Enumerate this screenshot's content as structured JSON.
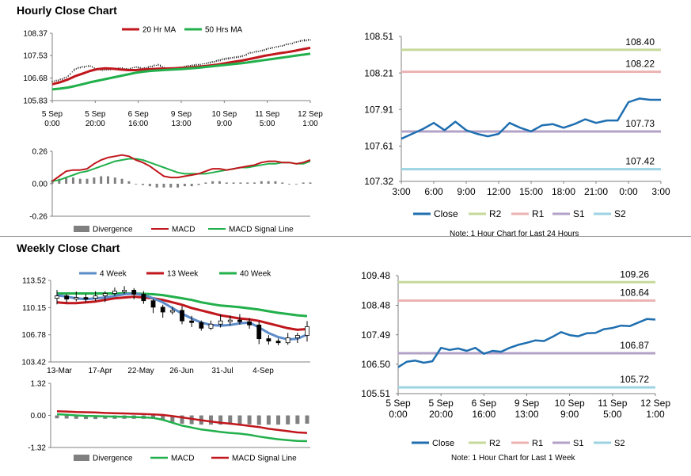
{
  "sections": {
    "hourly_title": "Hourly Close Chart",
    "weekly_title": "Weekly Close Chart"
  },
  "colors": {
    "ma20": "#c0171d",
    "ma50": "#21b04b",
    "close": "#1f6fb0",
    "r2": "#c6d99a",
    "r1": "#ecb3b3",
    "s1": "#b3a2c7",
    "s2": "#9dd3e3",
    "week4": "#5b8bc9",
    "divergence": "#808080"
  },
  "chart_data": [
    {
      "id": "hourly_price",
      "type": "line",
      "title": "",
      "legend": [
        "20 Hr MA",
        "50 Hrs MA"
      ],
      "ylim": [
        105.83,
        108.37
      ],
      "yticks": [
        "108.37",
        "107.53",
        "106.68",
        "105.83"
      ],
      "xticks": [
        "5 Sep\n0:00",
        "5 Sep\n20:00",
        "6 Sep\n16:00",
        "9 Sep\n13:00",
        "10 Sep\n9:00",
        "11 Sep\n5:00",
        "12 Sep\n1:00"
      ],
      "n_bars": 130,
      "series": [
        {
          "name": "Price",
          "values": [
            106.55,
            106.62,
            106.72,
            107.02,
            107.1,
            107.14,
            107.0,
            106.98,
            107.02,
            107.06,
            107.0,
            107.1,
            107.05,
            107.12,
            107.18,
            107.05,
            107.02,
            107.08,
            107.15,
            107.18,
            107.22,
            107.28,
            107.35,
            107.42,
            107.45,
            107.5,
            107.62,
            107.68,
            107.75,
            107.82,
            107.88,
            107.95,
            108.02,
            108.1,
            108.12
          ]
        },
        {
          "name": "20 Hr MA",
          "values": [
            106.45,
            106.52,
            106.62,
            106.75,
            106.85,
            106.95,
            107.02,
            107.05,
            107.03,
            107.0,
            106.98,
            106.98,
            107.0,
            107.02,
            107.03,
            107.04,
            107.05,
            107.06,
            107.08,
            107.1,
            107.13,
            107.16,
            107.2,
            107.25,
            107.3,
            107.34,
            107.4,
            107.46,
            107.52,
            107.57,
            107.62,
            107.66,
            107.71,
            107.77,
            107.82
          ]
        },
        {
          "name": "50 Hrs MA",
          "values": [
            106.25,
            106.28,
            106.32,
            106.38,
            106.45,
            106.52,
            106.58,
            106.64,
            106.7,
            106.76,
            106.82,
            106.88,
            106.92,
            106.95,
            106.97,
            106.99,
            107.0,
            107.02,
            107.04,
            107.06,
            107.09,
            107.12,
            107.15,
            107.18,
            107.21,
            107.24,
            107.28,
            107.32,
            107.36,
            107.4,
            107.44,
            107.48,
            107.52,
            107.56,
            107.6
          ]
        }
      ]
    },
    {
      "id": "hourly_macd",
      "type": "line",
      "ylim": [
        -0.26,
        0.26
      ],
      "yticks": [
        "0.26",
        "0.00",
        "-0.26"
      ],
      "legend": [
        "Divergence",
        "MACD",
        "MACD Signal Line"
      ],
      "series": [
        {
          "name": "MACD",
          "values": [
            0.02,
            0.06,
            0.1,
            0.11,
            0.11,
            0.12,
            0.16,
            0.19,
            0.21,
            0.22,
            0.23,
            0.22,
            0.19,
            0.17,
            0.14,
            0.1,
            0.06,
            0.05,
            0.05,
            0.06,
            0.07,
            0.08,
            0.1,
            0.12,
            0.12,
            0.11,
            0.12,
            0.13,
            0.14,
            0.15,
            0.17,
            0.18,
            0.18,
            0.17,
            0.17,
            0.16,
            0.17,
            0.19
          ]
        },
        {
          "name": "MACD Signal Line",
          "values": [
            0.02,
            0.03,
            0.05,
            0.07,
            0.09,
            0.1,
            0.12,
            0.14,
            0.16,
            0.18,
            0.19,
            0.2,
            0.2,
            0.19,
            0.17,
            0.15,
            0.13,
            0.11,
            0.09,
            0.08,
            0.08,
            0.08,
            0.08,
            0.09,
            0.1,
            0.11,
            0.12,
            0.13,
            0.13,
            0.14,
            0.15,
            0.16,
            0.16,
            0.17,
            0.17,
            0.16,
            0.16,
            0.18
          ]
        },
        {
          "name": "Divergence",
          "values": [
            0.03,
            0.04,
            0.05,
            0.05,
            0.04,
            0.04,
            0.05,
            0.06,
            0.06,
            0.05,
            0.04,
            0.02,
            0.0,
            -0.01,
            -0.02,
            -0.03,
            -0.03,
            -0.03,
            -0.03,
            -0.02,
            -0.02,
            -0.01,
            0.01,
            0.02,
            0.02,
            0.01,
            0.01,
            0.01,
            0.01,
            0.01,
            0.02,
            0.02,
            0.02,
            0.01,
            0.0,
            0.0,
            0.01,
            0.01
          ]
        }
      ]
    },
    {
      "id": "hourly_levels",
      "type": "line",
      "ylim": [
        107.32,
        108.51
      ],
      "yticks": [
        "108.51",
        "108.21",
        "107.91",
        "107.61",
        "107.32"
      ],
      "xticks": [
        "3:00",
        "6:00",
        "9:00",
        "12:00",
        "15:00",
        "18:00",
        "21:00",
        "0:00",
        "3:00"
      ],
      "levels": {
        "R2": "108.40",
        "R1": "108.22",
        "S1": "107.73",
        "S2": "107.42"
      },
      "legend": [
        "Close",
        "R2",
        "R1",
        "S1",
        "S2"
      ],
      "note": "Note: 1 Hour Chart for Last 24 Hours",
      "series": [
        {
          "name": "Close",
          "values": [
            107.67,
            107.71,
            107.75,
            107.8,
            107.74,
            107.81,
            107.74,
            107.71,
            107.69,
            107.71,
            107.8,
            107.76,
            107.73,
            107.78,
            107.79,
            107.76,
            107.79,
            107.83,
            107.8,
            107.82,
            107.82,
            107.97,
            108.0,
            107.99,
            107.99
          ]
        }
      ]
    },
    {
      "id": "weekly_price",
      "type": "line",
      "legend": [
        "4 Week",
        "13 Week",
        "40 Week"
      ],
      "ylim": [
        103.42,
        113.52
      ],
      "yticks": [
        "113.52",
        "110.15",
        "106.78",
        "103.42"
      ],
      "xticks": [
        "13-Mar",
        "17-Apr",
        "22-May",
        "26-Jun",
        "31-Jul",
        "4-Sep"
      ],
      "series": [
        {
          "name": "Price",
          "values": [
            111.6,
            111.2,
            111.4,
            111.3,
            111.6,
            111.9,
            112.2,
            112.3,
            111.8,
            111.0,
            110.2,
            109.6,
            109.8,
            108.5,
            108.3,
            107.6,
            108.1,
            108.5,
            108.6,
            108.4,
            108.0,
            106.3,
            106.0,
            105.8,
            106.4,
            106.7,
            107.8
          ]
        },
        {
          "name": "4 Week",
          "values": [
            111.7,
            111.5,
            111.3,
            111.2,
            111.3,
            111.4,
            111.6,
            111.8,
            111.9,
            111.7,
            111.3,
            110.8,
            110.1,
            109.4,
            108.8,
            108.3,
            108.0,
            107.9,
            108.0,
            108.2,
            108.3,
            107.7,
            107.0,
            106.5,
            106.2,
            106.3,
            106.8
          ]
        },
        {
          "name": "13 Week",
          "values": [
            110.8,
            110.7,
            110.7,
            110.8,
            110.9,
            111.1,
            111.3,
            111.4,
            111.5,
            111.4,
            111.3,
            111.1,
            110.8,
            110.5,
            110.1,
            109.8,
            109.5,
            109.2,
            109.0,
            108.8,
            108.7,
            108.5,
            108.2,
            107.9,
            107.6,
            107.4,
            107.5
          ]
        },
        {
          "name": "40 Week",
          "values": [
            111.9,
            111.9,
            111.9,
            111.9,
            111.9,
            111.9,
            111.9,
            111.9,
            111.9,
            111.85,
            111.8,
            111.7,
            111.5,
            111.3,
            111.1,
            110.8,
            110.6,
            110.4,
            110.3,
            110.2,
            110.05,
            109.9,
            109.7,
            109.5,
            109.35,
            109.2,
            109.1
          ]
        }
      ]
    },
    {
      "id": "weekly_macd",
      "type": "line",
      "ylim": [
        -1.32,
        1.32
      ],
      "yticks": [
        "1.32",
        "0.00",
        "-1.32"
      ],
      "legend": [
        "Divergence",
        "MACD",
        "MACD Signal Line"
      ],
      "series": [
        {
          "name": "MACD",
          "values": [
            0.05,
            0.03,
            0.0,
            -0.02,
            -0.03,
            -0.04,
            -0.05,
            -0.06,
            -0.07,
            -0.08,
            -0.1,
            -0.18,
            -0.3,
            -0.42,
            -0.5,
            -0.58,
            -0.63,
            -0.68,
            -0.72,
            -0.75,
            -0.8,
            -0.87,
            -0.93,
            -0.98,
            -1.02,
            -1.05,
            -1.06
          ]
        },
        {
          "name": "MACD Signal Line",
          "values": [
            0.17,
            0.16,
            0.14,
            0.13,
            0.12,
            0.1,
            0.09,
            0.08,
            0.07,
            0.06,
            0.04,
            0.02,
            -0.03,
            -0.08,
            -0.14,
            -0.2,
            -0.25,
            -0.3,
            -0.34,
            -0.38,
            -0.43,
            -0.48,
            -0.55,
            -0.6,
            -0.65,
            -0.7,
            -0.72
          ]
        },
        {
          "name": "Divergence",
          "values": [
            -0.12,
            -0.13,
            -0.14,
            -0.15,
            -0.15,
            -0.14,
            -0.14,
            -0.14,
            -0.14,
            -0.14,
            -0.14,
            -0.2,
            -0.27,
            -0.34,
            -0.36,
            -0.38,
            -0.38,
            -0.38,
            -0.38,
            -0.37,
            -0.37,
            -0.39,
            -0.38,
            -0.38,
            -0.37,
            -0.35,
            -0.34
          ]
        }
      ]
    },
    {
      "id": "weekly_levels",
      "type": "line",
      "ylim": [
        105.51,
        109.48
      ],
      "yticks": [
        "109.48",
        "108.48",
        "107.49",
        "106.50",
        "105.51"
      ],
      "xticks": [
        "5 Sep\n0:00",
        "5 Sep\n20:00",
        "6 Sep\n16:00",
        "9 Sep\n13:00",
        "10 Sep\n9:00",
        "11 Sep\n5:00",
        "12 Sep\n1:00"
      ],
      "levels": {
        "R2": "109.26",
        "R1": "108.64",
        "S1": "106.87",
        "S2": "105.72"
      },
      "legend": [
        "Close",
        "R2",
        "R1",
        "S1",
        "S2"
      ],
      "note": "Note: 1 Hour Chart for Last 1 Week",
      "series": [
        {
          "name": "Close",
          "values": [
            106.4,
            106.58,
            106.62,
            106.55,
            106.6,
            107.05,
            106.98,
            107.03,
            106.95,
            107.05,
            106.85,
            106.95,
            106.92,
            107.05,
            107.15,
            107.22,
            107.3,
            107.28,
            107.42,
            107.58,
            107.48,
            107.44,
            107.54,
            107.55,
            107.68,
            107.72,
            107.8,
            107.78,
            107.9,
            108.02,
            108.0
          ]
        }
      ]
    }
  ]
}
